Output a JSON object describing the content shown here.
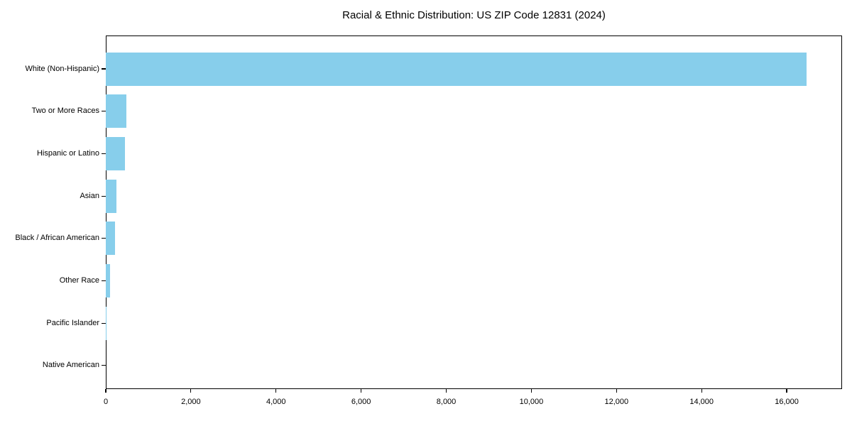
{
  "chart_data": {
    "type": "bar",
    "orientation": "horizontal",
    "title": "Racial & Ethnic Distribution: US ZIP Code 12831 (2024)",
    "categories": [
      "White (Non-Hispanic)",
      "Two or More Races",
      "Hispanic or Latino",
      "Asian",
      "Black / African American",
      "Other Race",
      "Pacific Islander",
      "Native American"
    ],
    "values": [
      16470,
      485,
      450,
      255,
      225,
      100,
      10,
      5
    ],
    "xlabel": "",
    "ylabel": "",
    "xlim": [
      0,
      17300
    ],
    "x_ticks": [
      0,
      2000,
      4000,
      6000,
      8000,
      10000,
      12000,
      14000,
      16000
    ],
    "x_tick_labels": [
      "0",
      "2,000",
      "4,000",
      "6,000",
      "8,000",
      "10,000",
      "12,000",
      "14,000",
      "16,000"
    ],
    "bar_color": "#87CEEB",
    "grid": false,
    "legend": "none"
  }
}
